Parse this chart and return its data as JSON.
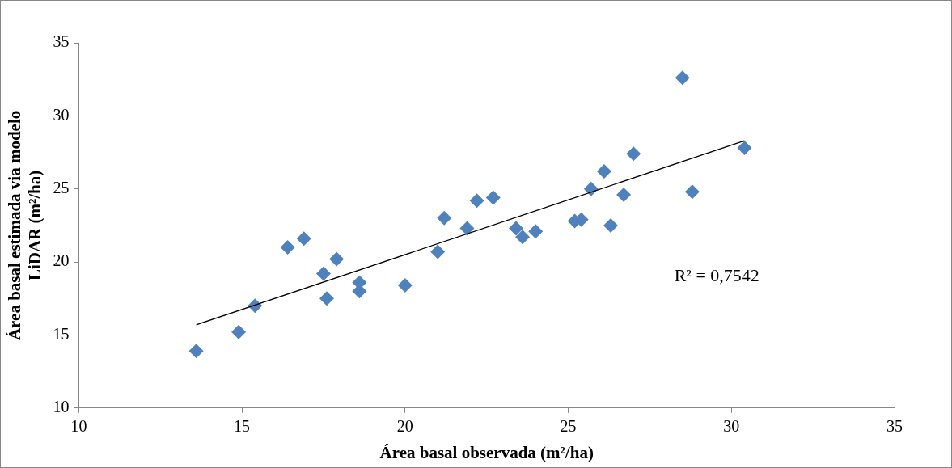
{
  "chart_data": {
    "type": "scatter",
    "xlabel": "Área basal observada (m²/ha)",
    "ylabel": "Área basal estimada via modelo LiDAR (m²/ha)",
    "marker": "diamond",
    "grid": false,
    "legend": false,
    "xlim": [
      10,
      35
    ],
    "xticks": [
      10,
      15,
      20,
      25,
      30,
      35
    ],
    "ylim": [
      10,
      35
    ],
    "yticks": [
      10,
      15,
      20,
      25,
      30,
      35
    ],
    "annotations": [
      "R² = 0,7542"
    ],
    "series": [
      {
        "color": "#4f81bd",
        "x": [
          13.6,
          14.9,
          15.4,
          16.4,
          16.9,
          17.5,
          17.6,
          17.9,
          18.6,
          18.6,
          20.0,
          21.0,
          21.2,
          21.9,
          22.2,
          22.7,
          23.4,
          23.6,
          24.0,
          25.2,
          25.4,
          25.7,
          26.1,
          26.3,
          26.7,
          27.0,
          28.5,
          28.8,
          30.4
        ],
        "values": [
          13.9,
          15.2,
          17.0,
          21.0,
          21.6,
          19.2,
          17.5,
          20.2,
          18.0,
          18.6,
          18.4,
          20.7,
          23.0,
          22.3,
          24.2,
          24.4,
          22.3,
          21.7,
          22.1,
          22.8,
          22.9,
          25.0,
          26.2,
          22.5,
          24.6,
          27.4,
          32.6,
          24.8,
          27.8
        ]
      },
      {
        "type": "line",
        "color": "#000000",
        "marker": "none",
        "x": [
          13.6,
          30.4
        ],
        "values": [
          15.7,
          28.3
        ]
      }
    ]
  }
}
